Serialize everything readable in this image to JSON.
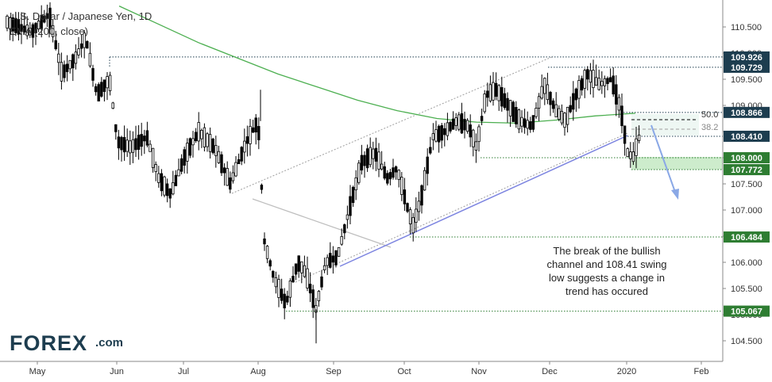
{
  "chart_data": {
    "type": "candlestick",
    "title": "U.S. Dollar / Japanese Yen, 1D",
    "indicator_label": "EMA (200, close)",
    "x_tick_labels": [
      "May",
      "Jun",
      "Jul",
      "Aug",
      "Sep",
      "Oct",
      "Nov",
      "Dec",
      "2020",
      "Feb"
    ],
    "y_tick_labels": [
      104.5,
      105.0,
      105.5,
      106.0,
      106.5,
      107.0,
      107.5,
      108.0,
      108.5,
      109.0,
      109.5,
      110.0,
      110.5
    ],
    "ylim": [
      104.35,
      110.8
    ],
    "price_levels": [
      {
        "value": 109.926,
        "label": "109.926",
        "style": "dark"
      },
      {
        "value": 109.729,
        "label": "109.729",
        "style": "dark"
      },
      {
        "value": 108.866,
        "label": "108.866",
        "style": "dark"
      },
      {
        "value": 108.462,
        "label": "108.462",
        "style": "plain"
      },
      {
        "value": 108.41,
        "label": "108.410",
        "style": "dark"
      },
      {
        "value": 108.0,
        "label": "108.000",
        "style": "green"
      },
      {
        "value": 107.772,
        "label": "107.772",
        "style": "green"
      },
      {
        "value": 106.484,
        "label": "106.484",
        "style": "green"
      },
      {
        "value": 105.067,
        "label": "105.067",
        "style": "green"
      }
    ],
    "fib_labels": [
      "50.0",
      "38.2"
    ],
    "annotation": [
      "The break of the bullish",
      "channel and 108.41 swing",
      "low suggests a change in",
      "trend has occured"
    ],
    "colors": {
      "candle": "#000000",
      "ema": "#4caf50",
      "trendline": "#7b83e0",
      "channel": "#9e9e9e",
      "level_dark": "#1d3d4f",
      "level_green": "#2e7d32",
      "box": "#c8eac6",
      "arrow": "#8aa8e6"
    }
  },
  "logo": {
    "text": "FOREX",
    "suffix": ".com"
  }
}
